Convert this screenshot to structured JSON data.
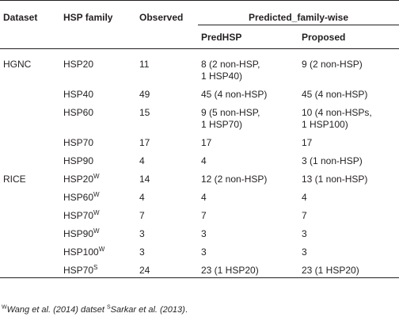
{
  "table": {
    "headers": {
      "dataset": "Dataset",
      "hsp_family": "HSP family",
      "observed": "Observed",
      "predicted": "Predicted_family-wise",
      "predhsp": "PredHSP",
      "proposed": "Proposed"
    },
    "rows": [
      {
        "dataset": "HGNC",
        "family": "HSP20",
        "sup": "",
        "observed": "11",
        "predhsp": [
          "8 (2 non-HSP,",
          "1 HSP40)"
        ],
        "proposed": [
          "9 (2 non-HSP)"
        ]
      },
      {
        "dataset": "",
        "family": "HSP40",
        "sup": "",
        "observed": "49",
        "predhsp": [
          "45 (4 non-HSP)"
        ],
        "proposed": [
          "45 (4 non-HSP)"
        ]
      },
      {
        "dataset": "",
        "family": "HSP60",
        "sup": "",
        "observed": "15",
        "predhsp": [
          "9 (5 non-HSP,",
          "1 HSP70)"
        ],
        "proposed": [
          "10 (4 non-HSPs,",
          "1 HSP100)"
        ]
      },
      {
        "dataset": "",
        "family": "HSP70",
        "sup": "",
        "observed": "17",
        "predhsp": [
          "17"
        ],
        "proposed": [
          "17"
        ]
      },
      {
        "dataset": "",
        "family": "HSP90",
        "sup": "",
        "observed": "4",
        "predhsp": [
          "4"
        ],
        "proposed": [
          "3 (1 non-HSP)"
        ]
      },
      {
        "dataset": "RICE",
        "family": "HSP20",
        "sup": "W",
        "observed": "14",
        "predhsp": [
          "12 (2 non-HSP)"
        ],
        "proposed": [
          "13 (1 non-HSP)"
        ]
      },
      {
        "dataset": "",
        "family": "HSP60",
        "sup": "W",
        "observed": "4",
        "predhsp": [
          "4"
        ],
        "proposed": [
          "4"
        ]
      },
      {
        "dataset": "",
        "family": "HSP70",
        "sup": "W",
        "observed": "7",
        "predhsp": [
          "7"
        ],
        "proposed": [
          "7"
        ]
      },
      {
        "dataset": "",
        "family": "HSP90",
        "sup": "W",
        "observed": "3",
        "predhsp": [
          "3"
        ],
        "proposed": [
          "3"
        ]
      },
      {
        "dataset": "",
        "family": "HSP100",
        "sup": "W",
        "observed": "3",
        "predhsp": [
          "3"
        ],
        "proposed": [
          "3"
        ]
      },
      {
        "dataset": "",
        "family": "HSP70",
        "sup": "S",
        "observed": "24",
        "predhsp": [
          "23 (1 HSP20)"
        ],
        "proposed": [
          "23 (1 HSP20)"
        ]
      }
    ]
  },
  "footnote": {
    "sup_w": "W",
    "ref_w": "Wang et al. (2014)",
    "mid": " datset ",
    "sup_s": "S",
    "ref_s": "Sarkar et al. (2013)",
    "end": "."
  }
}
